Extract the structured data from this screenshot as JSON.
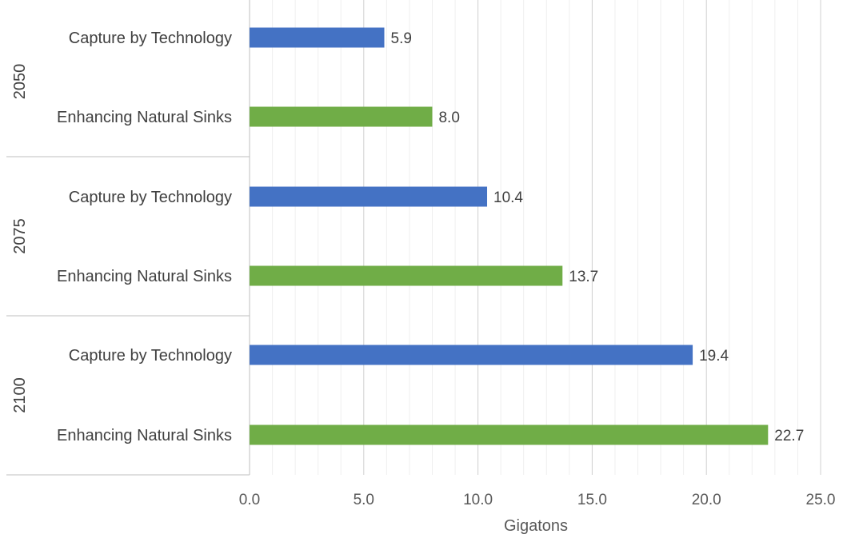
{
  "chart_data": {
    "type": "bar",
    "orientation": "horizontal",
    "title": "",
    "xlabel": "Gigatons",
    "ylabel": "",
    "xlim": [
      0,
      25
    ],
    "xticks": [
      0,
      5,
      10,
      15,
      20,
      25
    ],
    "xtick_labels": [
      "0.0",
      "5.0",
      "10.0",
      "15.0",
      "20.0",
      "25.0"
    ],
    "grid": true,
    "legend": "none",
    "groups": [
      {
        "name": "2050",
        "bars": [
          {
            "label": "Capture by Technology",
            "value": 5.9,
            "value_label": "5.9",
            "color": "#4472C4"
          },
          {
            "label": "Enhancing Natural Sinks",
            "value": 8.0,
            "value_label": "8.0",
            "color": "#70AD47"
          }
        ]
      },
      {
        "name": "2075",
        "bars": [
          {
            "label": "Capture by Technology",
            "value": 10.4,
            "value_label": "10.4",
            "color": "#4472C4"
          },
          {
            "label": "Enhancing Natural Sinks",
            "value": 13.7,
            "value_label": "13.7",
            "color": "#70AD47"
          }
        ]
      },
      {
        "name": "2100",
        "bars": [
          {
            "label": "Capture by Technology",
            "value": 19.4,
            "value_label": "19.4",
            "color": "#4472C4"
          },
          {
            "label": "Enhancing Natural Sinks",
            "value": 22.7,
            "value_label": "22.7",
            "color": "#70AD47"
          }
        ]
      }
    ]
  }
}
